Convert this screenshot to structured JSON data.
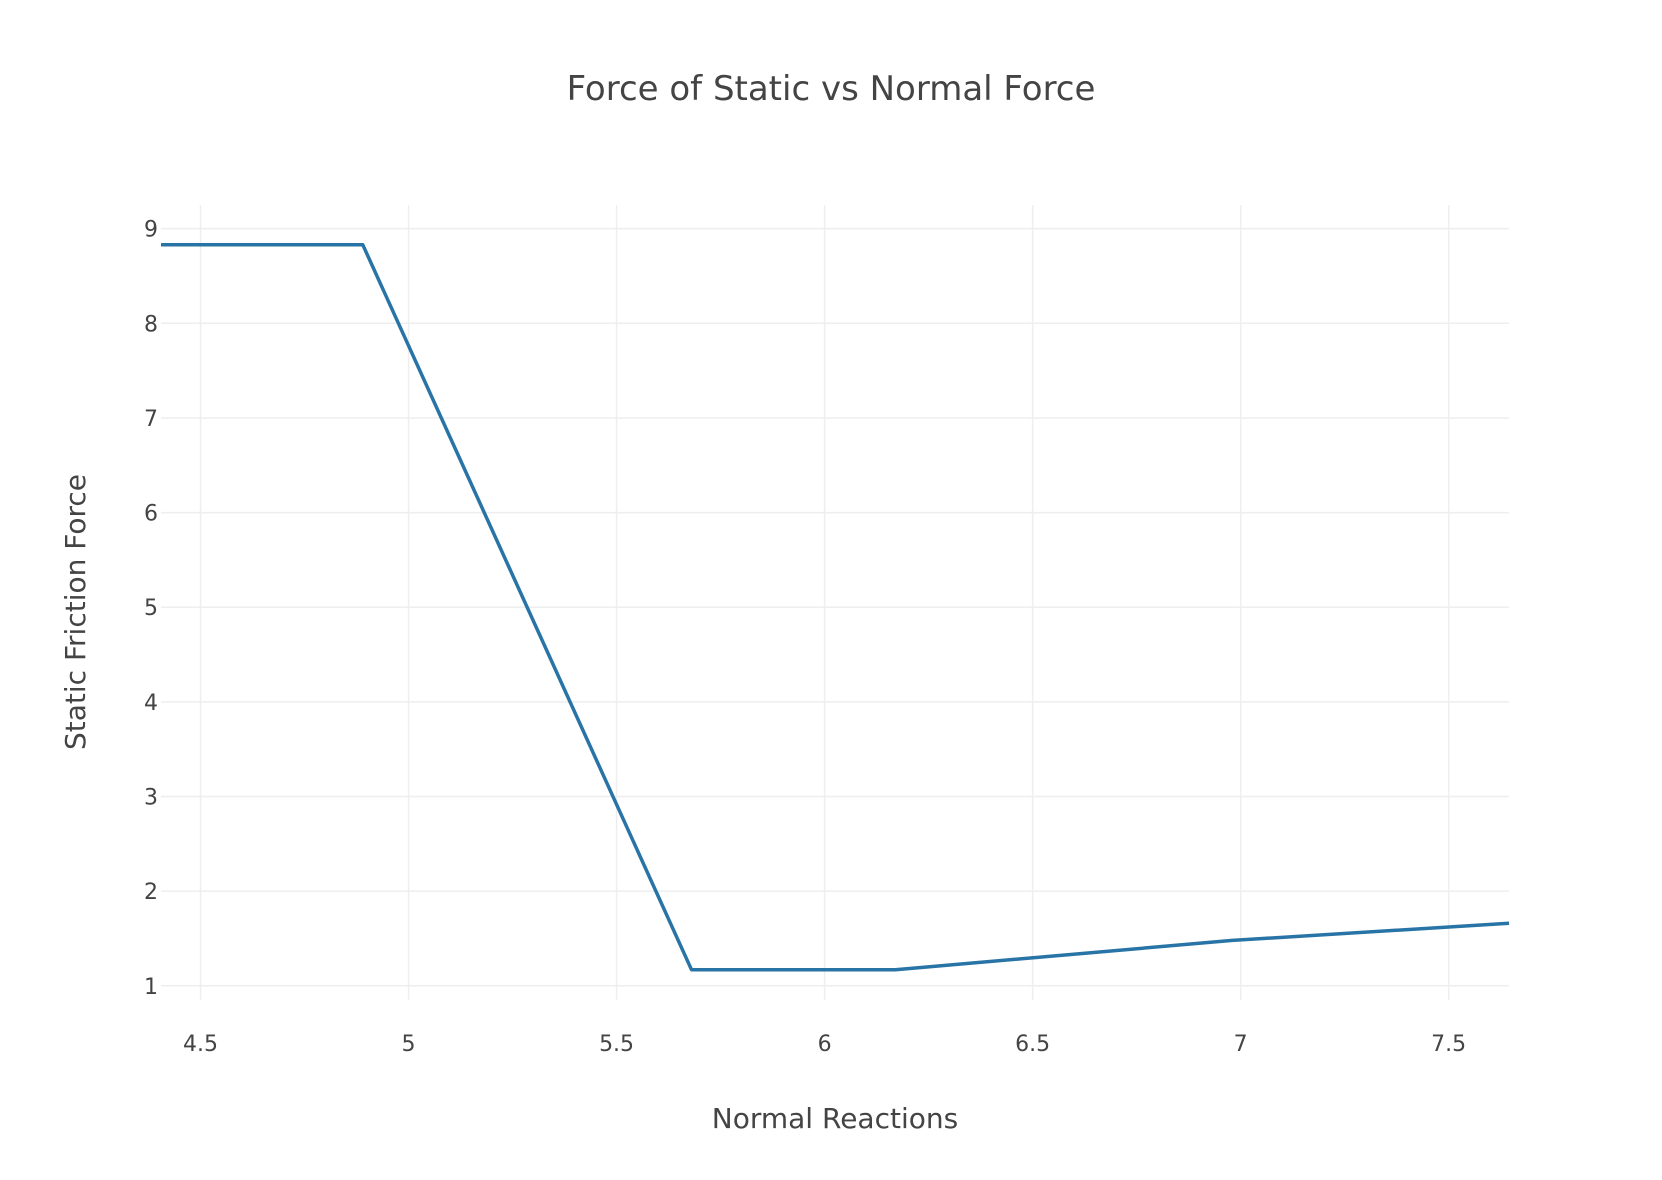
{
  "chart_data": {
    "type": "line",
    "title": "Force of Static vs Normal Force",
    "xlabel": "Normal Reactions",
    "ylabel": "Static Friction Force",
    "xlim": [
      4.405,
      7.645
    ],
    "ylim": [
      0.85,
      9.25
    ],
    "xticks": [
      4.5,
      5,
      5.5,
      6,
      6.5,
      7,
      7.5
    ],
    "xtick_labels": [
      "4.5",
      "5",
      "5.5",
      "6",
      "6.5",
      "7",
      "7.5"
    ],
    "yticks": [
      1,
      2,
      3,
      4,
      5,
      6,
      7,
      8,
      9
    ],
    "ytick_labels": [
      "1",
      "2",
      "3",
      "4",
      "5",
      "6",
      "7",
      "8",
      "9"
    ],
    "grid": true,
    "legend": "none",
    "series": [
      {
        "color": "#2874a6",
        "x": [
          4.405,
          4.89,
          5.68,
          6.17,
          6.98,
          7.645
        ],
        "y": [
          8.83,
          8.83,
          1.17,
          1.17,
          1.48,
          1.66
        ]
      }
    ]
  }
}
